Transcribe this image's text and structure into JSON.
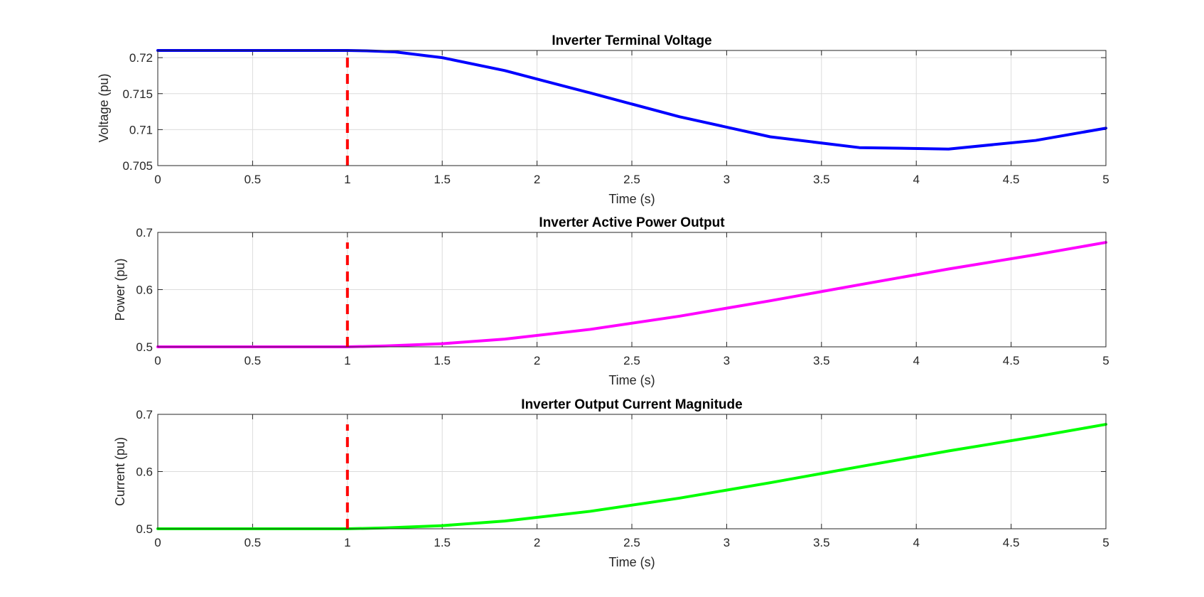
{
  "chart_data": [
    {
      "type": "line",
      "title": "Inverter Terminal Voltage",
      "xlabel": "Time (s)",
      "ylabel": "Voltage (pu)",
      "xlim": [
        0,
        5
      ],
      "ylim": [
        0.705,
        0.721
      ],
      "xticks": [
        0,
        0.5,
        1,
        1.5,
        2,
        2.5,
        3,
        3.5,
        4,
        4.5,
        5
      ],
      "xtick_labels": [
        "0",
        "0.5",
        "1",
        "1.5",
        "2",
        "2.5",
        "3",
        "3.5",
        "4",
        "4.5",
        "5"
      ],
      "yticks": [
        0.705,
        0.71,
        0.715,
        0.72
      ],
      "ytick_labels": [
        "0.705",
        "0.71",
        "0.715",
        "0.72"
      ],
      "grid": true,
      "series": [
        {
          "color": "#0000ff",
          "x": [
            0,
            1,
            1.1,
            1.25,
            1.5,
            1.83,
            2.28,
            2.75,
            3.23,
            3.7,
            4.17,
            4.63,
            5
          ],
          "y": [
            0.721,
            0.721,
            0.72095,
            0.7208,
            0.72,
            0.7182,
            0.7151,
            0.7118,
            0.709,
            0.7075,
            0.7073,
            0.7085,
            0.7102
          ]
        }
      ],
      "event_marker": {
        "x": 1,
        "y": [
          0.705,
          0.7204
        ],
        "color": "#ff0000",
        "style": "dashed"
      }
    },
    {
      "type": "line",
      "title": "Inverter Active Power Output",
      "xlabel": "Time (s)",
      "ylabel": "Power (pu)",
      "xlim": [
        0,
        5
      ],
      "ylim": [
        0.5,
        0.7
      ],
      "xticks": [
        0,
        0.5,
        1,
        1.5,
        2,
        2.5,
        3,
        3.5,
        4,
        4.5,
        5
      ],
      "xtick_labels": [
        "0",
        "0.5",
        "1",
        "1.5",
        "2",
        "2.5",
        "3",
        "3.5",
        "4",
        "4.5",
        "5"
      ],
      "yticks": [
        0.5,
        0.6,
        0.7
      ],
      "ytick_labels": [
        "0.5",
        "0.6",
        "0.7"
      ],
      "grid": true,
      "series": [
        {
          "color": "#ff00ff",
          "x": [
            0,
            1,
            1.2,
            1.5,
            1.83,
            2.28,
            2.75,
            3.23,
            3.7,
            4.17,
            4.63,
            5
          ],
          "y": [
            0.5,
            0.5,
            0.5015,
            0.5055,
            0.5135,
            0.5305,
            0.5535,
            0.5805,
            0.6085,
            0.636,
            0.661,
            0.6825
          ]
        }
      ],
      "event_marker": {
        "x": 1,
        "y": [
          0.5,
          0.6825
        ],
        "color": "#ff0000",
        "style": "dashed"
      }
    },
    {
      "type": "line",
      "title": "Inverter Output Current Magnitude",
      "xlabel": "Time (s)",
      "ylabel": "Current (pu)",
      "xlim": [
        0,
        5
      ],
      "ylim": [
        0.5,
        0.7
      ],
      "xticks": [
        0,
        0.5,
        1,
        1.5,
        2,
        2.5,
        3,
        3.5,
        4,
        4.5,
        5
      ],
      "xtick_labels": [
        "0",
        "0.5",
        "1",
        "1.5",
        "2",
        "2.5",
        "3",
        "3.5",
        "4",
        "4.5",
        "5"
      ],
      "yticks": [
        0.5,
        0.6,
        0.7
      ],
      "ytick_labels": [
        "0.5",
        "0.6",
        "0.7"
      ],
      "grid": true,
      "series": [
        {
          "color": "#00ff00",
          "x": [
            0,
            1,
            1.2,
            1.5,
            1.83,
            2.28,
            2.75,
            3.23,
            3.7,
            4.17,
            4.63,
            5
          ],
          "y": [
            0.5,
            0.5,
            0.5015,
            0.5055,
            0.5135,
            0.5305,
            0.5535,
            0.5805,
            0.6085,
            0.636,
            0.661,
            0.6825
          ]
        }
      ],
      "event_marker": {
        "x": 1,
        "y": [
          0.5,
          0.6825
        ],
        "color": "#ff0000",
        "style": "dashed"
      }
    }
  ]
}
